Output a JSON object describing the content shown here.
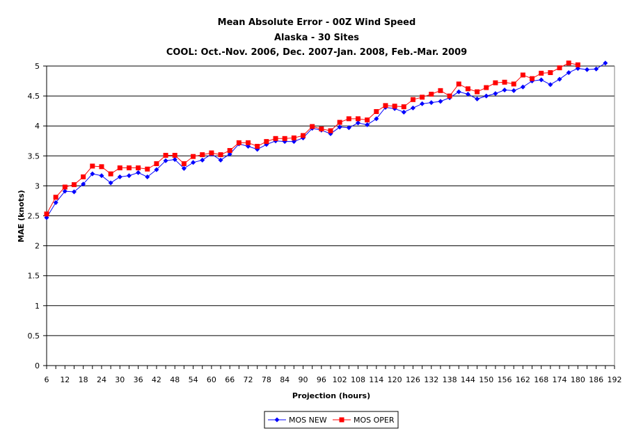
{
  "chart_data": {
    "type": "line",
    "title": [
      "Mean Absolute Error - 00Z Wind Speed",
      "Alaska - 30 Sites",
      "COOL: Oct.-Nov. 2006, Dec. 2007-Jan. 2008, Feb.-Mar. 2009"
    ],
    "xlabel": "Projection (hours)",
    "ylabel": "MAE (knots)",
    "ylim": [
      0,
      5
    ],
    "xlim": [
      6,
      192
    ],
    "x_tick_labels": [
      "6",
      "12",
      "18",
      "24",
      "30",
      "36",
      "42",
      "48",
      "54",
      "60",
      "66",
      "72",
      "78",
      "84",
      "90",
      "96",
      "102",
      "108",
      "114",
      "120",
      "126",
      "132",
      "138",
      "144",
      "150",
      "156",
      "162",
      "168",
      "174",
      "180",
      "186",
      "192"
    ],
    "y_tick_labels": [
      "0",
      "0.5",
      "1",
      "1.5",
      "2",
      "2.5",
      "3",
      "3.5",
      "4",
      "4.5",
      "5"
    ],
    "grid": true,
    "legend_position": "bottom",
    "x": [
      6,
      9,
      12,
      15,
      18,
      21,
      24,
      27,
      30,
      33,
      36,
      39,
      42,
      45,
      48,
      51,
      54,
      57,
      60,
      63,
      66,
      69,
      72,
      75,
      78,
      81,
      84,
      87,
      90,
      93,
      96,
      99,
      102,
      105,
      108,
      111,
      114,
      117,
      120,
      123,
      126,
      129,
      132,
      135,
      138,
      141,
      144,
      147,
      150,
      153,
      156,
      159,
      162,
      165,
      168,
      171,
      174,
      177,
      180,
      183,
      186,
      189
    ],
    "series": [
      {
        "name": "MOS NEW",
        "color": "#0000ff",
        "marker": "diamond",
        "values": [
          2.47,
          2.72,
          2.91,
          2.9,
          3.03,
          3.2,
          3.17,
          3.05,
          3.15,
          3.17,
          3.22,
          3.15,
          3.27,
          3.42,
          3.44,
          3.29,
          3.39,
          3.43,
          3.53,
          3.43,
          3.53,
          3.7,
          3.66,
          3.61,
          3.69,
          3.75,
          3.74,
          3.74,
          3.8,
          3.96,
          3.93,
          3.87,
          3.98,
          3.97,
          4.05,
          4.02,
          4.12,
          4.31,
          4.29,
          4.23,
          4.3,
          4.37,
          4.39,
          4.41,
          4.47,
          4.57,
          4.53,
          4.45,
          4.5,
          4.54,
          4.6,
          4.59,
          4.65,
          4.75,
          4.77,
          4.69,
          4.78,
          4.89,
          4.96,
          4.94,
          4.95,
          5.05
        ]
      },
      {
        "name": "MOS OPER",
        "color": "#ff0000",
        "marker": "square",
        "values": [
          2.53,
          2.81,
          2.98,
          3.02,
          3.15,
          3.33,
          3.32,
          3.2,
          3.3,
          3.3,
          3.3,
          3.28,
          3.37,
          3.51,
          3.51,
          3.37,
          3.49,
          3.52,
          3.55,
          3.52,
          3.59,
          3.72,
          3.72,
          3.66,
          3.74,
          3.79,
          3.79,
          3.8,
          3.84,
          3.99,
          3.95,
          3.92,
          4.06,
          4.12,
          4.12,
          4.1,
          4.24,
          4.34,
          4.33,
          4.32,
          4.44,
          4.48,
          4.53,
          4.59,
          4.5,
          4.7,
          4.62,
          4.57,
          4.64,
          4.72,
          4.73,
          4.7,
          4.85,
          4.79,
          4.88,
          4.89,
          4.97,
          5.05,
          5.02,
          null,
          null,
          null
        ]
      }
    ]
  }
}
